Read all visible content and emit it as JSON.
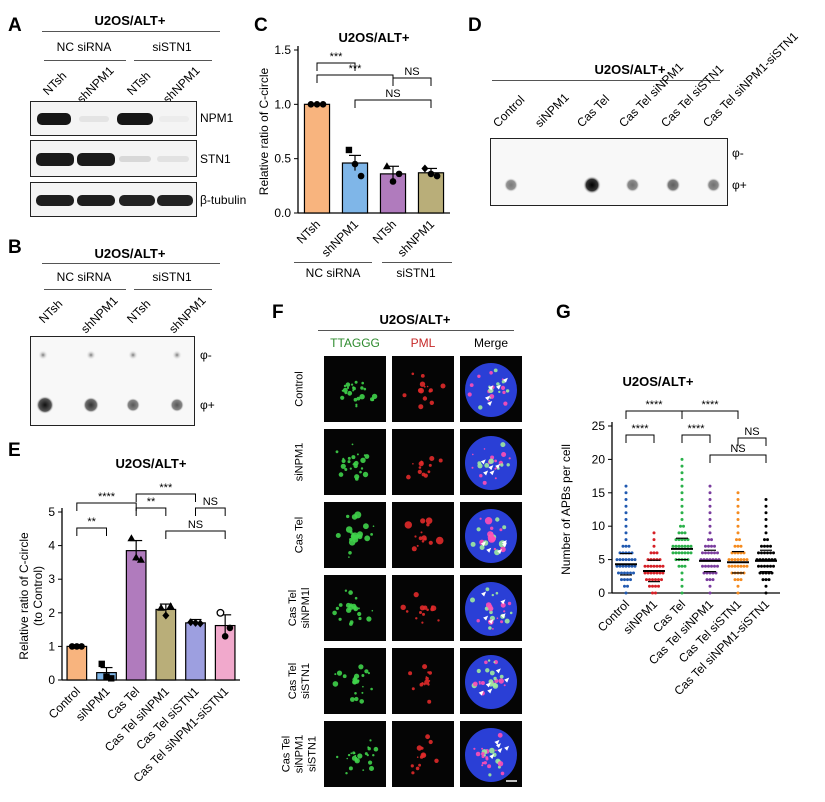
{
  "panels": {
    "A": {
      "label": "A",
      "header": "U2OS/ALT+",
      "groups": [
        "NC siRNA",
        "siSTN1"
      ],
      "lanes": [
        "NTsh",
        "shNPM1",
        "NTsh",
        "shNPM1"
      ],
      "rows": [
        "NPM1",
        "STN1",
        "β-tubulin"
      ]
    },
    "B": {
      "label": "B",
      "header": "U2OS/ALT+",
      "groups": [
        "NC siRNA",
        "siSTN1"
      ],
      "lanes": [
        "NTsh",
        "shNPM1",
        "NTsh",
        "shNPM1"
      ],
      "rows": [
        "φ-",
        "φ+"
      ]
    },
    "C": {
      "label": "C",
      "group_labels": [
        "NC siRNA",
        "siSTN1"
      ]
    },
    "D": {
      "label": "D",
      "header": "U2OS/ALT+",
      "lanes": [
        "Control",
        "siNPM1",
        "Cas Tel",
        "Cas Tel siNPM1",
        "Cas Tel siSTN1",
        "Cas Tel siNPM1-siSTN1"
      ],
      "rows": [
        "φ-",
        "φ+"
      ],
      "dot_intensity": [
        0.35,
        0.0,
        1.0,
        0.4,
        0.5,
        0.4
      ]
    },
    "E": {
      "label": "E"
    },
    "F": {
      "label": "F",
      "header": "U2OS/ALT+",
      "columns": [
        "TTAGGG",
        "PML",
        "Merge"
      ],
      "column_colors": [
        "#2e8b2e",
        "#c62828",
        "#000000"
      ],
      "rows": [
        "Control",
        "siNPM1",
        "Cas Tel",
        "Cas Tel siNPM1l",
        "Cas Tel siSTN1",
        "Cas Tel siNPM1 siSTN1"
      ]
    },
    "G": {
      "label": "G"
    }
  },
  "chart_data": [
    {
      "panel": "C",
      "type": "bar",
      "title": "U2OS/ALT+",
      "categories": [
        "NTsh",
        "shNPM1",
        "NTsh",
        "shNPM1"
      ],
      "values": [
        1.0,
        0.46,
        0.36,
        0.37
      ],
      "errors": [
        0.0,
        0.07,
        0.07,
        0.04
      ],
      "points": [
        [
          1.0,
          1.0,
          1.0
        ],
        [
          0.58,
          0.45,
          0.34
        ],
        [
          0.43,
          0.29,
          0.36
        ],
        [
          0.41,
          0.36,
          0.34
        ]
      ],
      "colors": [
        "#f8b47e",
        "#7fb6e8",
        "#b07bbd",
        "#b9ae79"
      ],
      "ylabel": "Relative ratio of C-circle",
      "ylim": [
        0,
        1.5
      ],
      "yticks": [
        "0.0",
        "0.5",
        "1.0",
        "1.5"
      ],
      "significance": [
        "***",
        "***",
        "NS",
        "NS"
      ]
    },
    {
      "panel": "E",
      "type": "bar",
      "title": "U2OS/ALT+",
      "categories": [
        "Control",
        "siNPM1",
        "Cas Tel",
        "Cas Tel siNPM1",
        "Cas Tel siSTN1",
        "Cas Tel siNPM1-siSTN1"
      ],
      "values": [
        1.0,
        0.22,
        3.85,
        2.1,
        1.7,
        1.62
      ],
      "errors": [
        0.0,
        0.15,
        0.3,
        0.16,
        0.1,
        0.32
      ],
      "points": [
        [
          1.0,
          1.0,
          1.0
        ],
        [
          0.48,
          0.1,
          0.05
        ],
        [
          4.22,
          3.65,
          3.58
        ],
        [
          2.15,
          1.92,
          2.2
        ],
        [
          1.72,
          1.7,
          1.68
        ],
        [
          2.0,
          1.3,
          1.55
        ]
      ],
      "colors": [
        "#f8b47e",
        "#7fb6e8",
        "#b07bbd",
        "#b9ae79",
        "#9d9fe0",
        "#f1a9cc"
      ],
      "ylabel": "Relative ratio of C-circle",
      "ylabel2": "(to Control)",
      "ylim": [
        0,
        5
      ],
      "yticks": [
        "0",
        "1",
        "2",
        "3",
        "4",
        "5"
      ],
      "significance": [
        "**",
        "****",
        "**",
        "***",
        "NS",
        "NS"
      ]
    },
    {
      "panel": "G",
      "type": "scatter",
      "title": "U2OS/ALT+",
      "categories": [
        "Control",
        "siNPM1",
        "Cas Tel",
        "Cas Tel siNPM1",
        "Cas Tel siSTN1",
        "Cas Tel siNPM1-siSTN1"
      ],
      "medians": [
        4.3,
        3.3,
        6.6,
        4.8,
        4.6,
        4.8
      ],
      "max_values": [
        16,
        9,
        20,
        16,
        15,
        14
      ],
      "colors": [
        "#2059b0",
        "#d61f26",
        "#2ab14a",
        "#7a3c9e",
        "#f58b1f",
        "#000000"
      ],
      "ylabel": "Number of APBs per cell",
      "ylim": [
        0,
        25
      ],
      "yticks": [
        "0",
        "5",
        "10",
        "15",
        "20",
        "25"
      ],
      "significance": [
        "****",
        "****",
        "****",
        "****",
        "NS",
        "NS"
      ]
    }
  ]
}
